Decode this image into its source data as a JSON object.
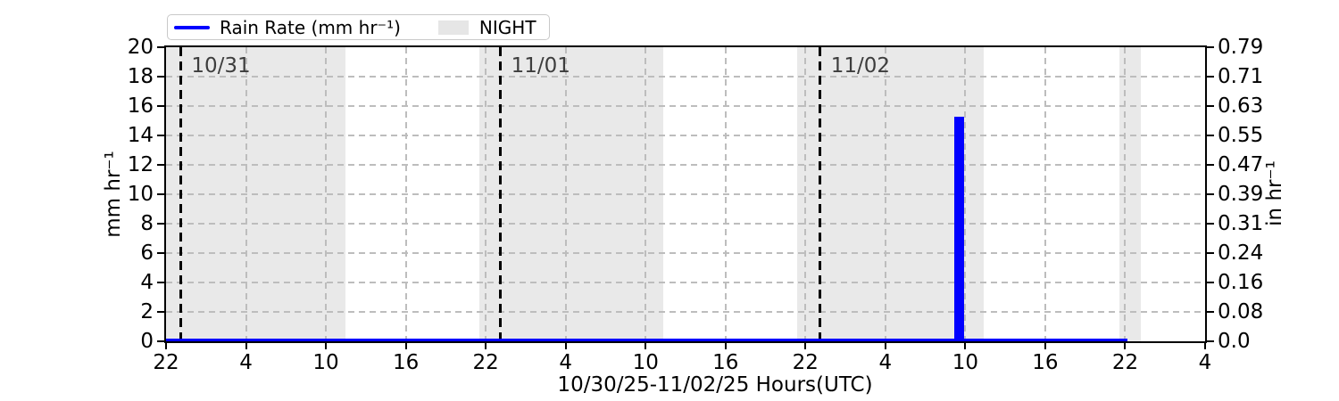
{
  "figure": {
    "xlabel": "10/30/25-11/02/25  Hours(UTC)",
    "ylabel_left": "mm hr⁻¹",
    "ylabel_right": "in hr⁻¹"
  },
  "legend": {
    "rain_label": "Rain Rate (mm hr⁻¹)",
    "night_label": "NIGHT"
  },
  "colors": {
    "rain": "#0000ff",
    "night_fill": "#e9e9e9",
    "grid": "#bdbdbd",
    "day_line": "#000000",
    "day_label_text": "#3d3d3d",
    "axis": "#000000"
  },
  "chart_data": {
    "type": "bar",
    "title": "",
    "xlabel": "10/30/25-11/02/25  Hours(UTC)",
    "x_axis": {
      "start": "10/30/25 22:00 UTC",
      "total_hours": 78,
      "tick_interval_hours": 6,
      "tick_labels": [
        "22",
        "4",
        "10",
        "16",
        "22",
        "4",
        "10",
        "16",
        "22",
        "4",
        "10",
        "16",
        "22",
        "4"
      ]
    },
    "y_left": {
      "label": "mm hr⁻¹",
      "min": 0,
      "max": 20,
      "tick_values": [
        0,
        2,
        4,
        6,
        8,
        10,
        12,
        14,
        16,
        18,
        20
      ]
    },
    "y_right": {
      "label": "in hr⁻¹",
      "tick_labels": [
        "0.0",
        "0.08",
        "0.16",
        "0.24",
        "0.31",
        "0.39",
        "0.47",
        "0.55",
        "0.63",
        "0.71",
        "0.79"
      ]
    },
    "grid": true,
    "legend_position": "top-left",
    "night_regions_hours": [
      {
        "start_hour": 0.0,
        "end_hour": 13.5
      },
      {
        "start_hour": 23.5,
        "end_hour": 37.3
      },
      {
        "start_hour": 47.4,
        "end_hour": 61.4
      },
      {
        "start_hour": 71.6,
        "end_hour": 73.2
      }
    ],
    "day_boundaries": [
      {
        "hour": 1.1,
        "label": "10/31"
      },
      {
        "hour": 25.1,
        "label": "11/01"
      },
      {
        "hour": 49.1,
        "label": "11/02"
      }
    ],
    "series": [
      {
        "name": "Rain Rate (mm hr⁻¹)",
        "color": "#0000ff",
        "bars": [
          {
            "start_hour": 59.2,
            "end_hour": 59.9,
            "value_mm_hr": 15.3
          }
        ],
        "baseline": {
          "start_hour": 0,
          "end_hour": 72.2,
          "value_mm_hr": 0
        }
      }
    ]
  }
}
